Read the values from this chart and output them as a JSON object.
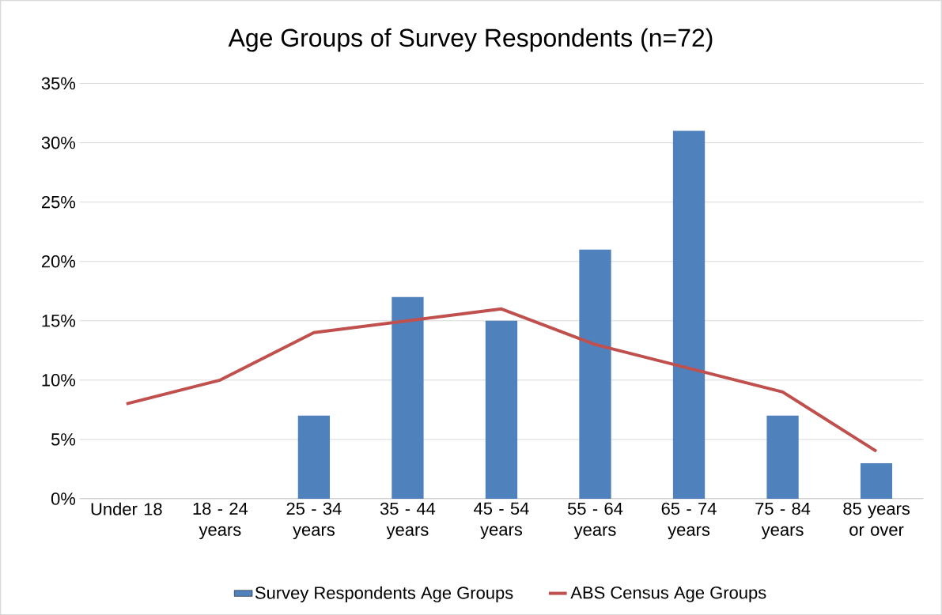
{
  "chart_data": {
    "type": "bar",
    "title": "Age Groups of Survey Respondents (n=72)",
    "categories": [
      "Under 18",
      "18 - 24 years",
      "25 - 34 years",
      "35 - 44 years",
      "45 - 54 years",
      "55 - 64 years",
      "65 - 74 years",
      "75 - 84 years",
      "85 years or over"
    ],
    "series": [
      {
        "name": "Survey Respondents Age Groups",
        "color": "#4f81bd",
        "values": [
          0,
          0,
          7,
          17,
          15,
          21,
          31,
          7,
          3
        ]
      },
      {
        "name": "ABS Census Age Groups",
        "type": "line",
        "color": "#c0504d",
        "values": [
          8,
          10,
          14,
          15,
          16,
          13,
          11,
          9,
          4
        ]
      }
    ],
    "ylim": [
      0,
      35
    ],
    "yticks": [
      {
        "value": 0,
        "label": "0%"
      },
      {
        "value": 5,
        "label": "5%"
      },
      {
        "value": 10,
        "label": "10%"
      },
      {
        "value": 15,
        "label": "15%"
      },
      {
        "value": 20,
        "label": "20%"
      },
      {
        "value": 25,
        "label": "25%"
      },
      {
        "value": 30,
        "label": "30%"
      },
      {
        "value": 35,
        "label": "35%"
      }
    ],
    "grid": "y",
    "legend": "bottom"
  }
}
